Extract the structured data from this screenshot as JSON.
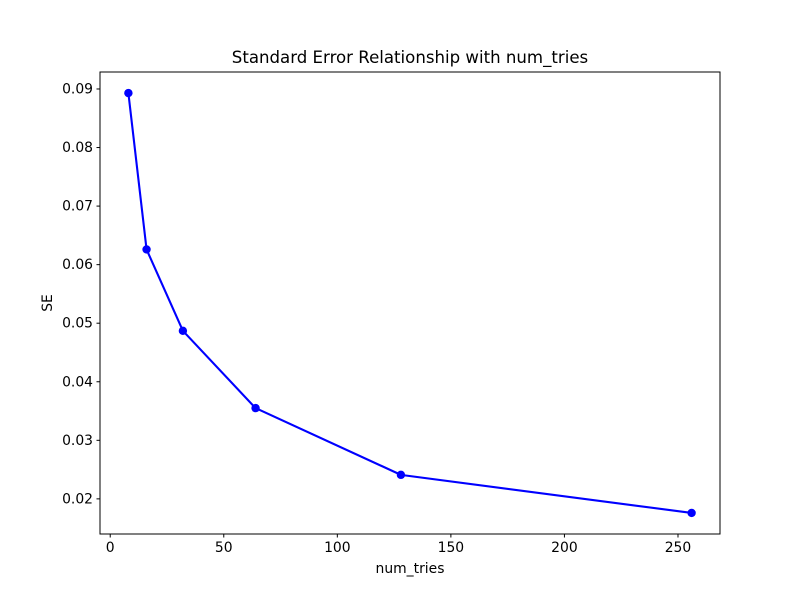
{
  "figure": {
    "background": "#ffffff",
    "frame_color": "#000000"
  },
  "chart_data": {
    "type": "line",
    "title": "Standard Error Relationship with num_tries",
    "xlabel": "num_tries",
    "ylabel": "SE",
    "series": [
      {
        "name": "SE",
        "color": "#0000ff",
        "marker": "circle",
        "x": [
          8,
          16,
          32,
          64,
          128,
          256
        ],
        "y": [
          0.0893,
          0.0626,
          0.0487,
          0.0355,
          0.0241,
          0.0176
        ]
      }
    ],
    "xlim": [
      -4.5,
      268.5
    ],
    "ylim": [
      0.014,
      0.0929
    ],
    "xticks": {
      "values": [
        0,
        50,
        100,
        150,
        200,
        250
      ],
      "labels": [
        "0",
        "50",
        "100",
        "150",
        "200",
        "250"
      ]
    },
    "yticks": {
      "values": [
        0.02,
        0.03,
        0.04,
        0.05,
        0.06,
        0.07,
        0.08,
        0.09
      ],
      "labels": [
        "0.02",
        "0.03",
        "0.04",
        "0.05",
        "0.06",
        "0.07",
        "0.08",
        "0.09"
      ]
    },
    "grid": false,
    "legend_position": "none"
  }
}
